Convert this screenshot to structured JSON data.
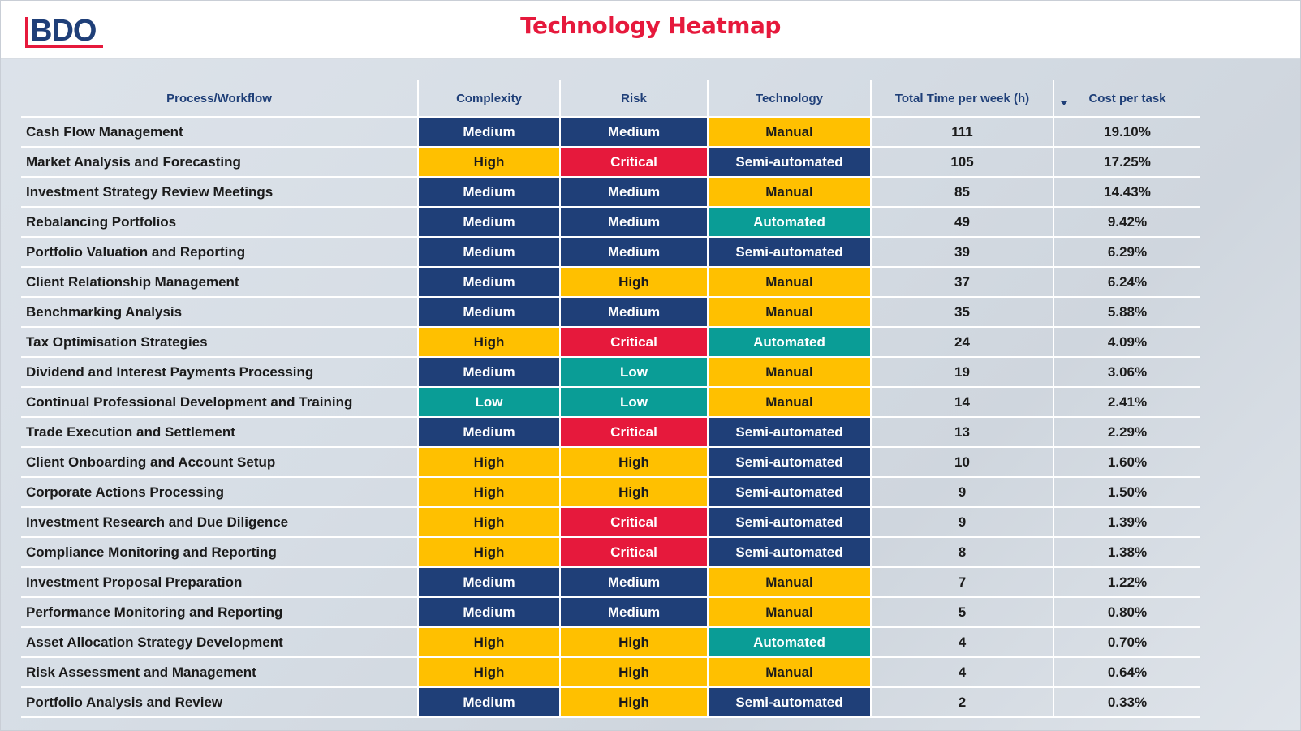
{
  "header": {
    "logo_text": "BDO",
    "title": "Technology Heatmap"
  },
  "colors": {
    "Medium": "#1f3f78",
    "High": "#ffc000",
    "Critical": "#e6193c",
    "Low": "#0a9d96",
    "Manual": "#ffc000",
    "Semi-automated": "#1f3f78",
    "Automated": "#0a9d96",
    "dark_text": "#1b1b1b",
    "light_text": "#ffffff"
  },
  "table": {
    "columns": [
      "Process/Workflow",
      "Complexity",
      "Risk",
      "Technology",
      "Total Time per week (h)",
      "Cost per task"
    ],
    "sort_icon": "sort-descending-icon",
    "rows": [
      {
        "process": "Cash Flow Management",
        "complexity": "Medium",
        "risk": "Medium",
        "technology": "Manual",
        "time": "111",
        "cost": "19.10%"
      },
      {
        "process": "Market Analysis and Forecasting",
        "complexity": "High",
        "risk": "Critical",
        "technology": "Semi-automated",
        "time": "105",
        "cost": "17.25%"
      },
      {
        "process": "Investment Strategy Review Meetings",
        "complexity": "Medium",
        "risk": "Medium",
        "technology": "Manual",
        "time": "85",
        "cost": "14.43%"
      },
      {
        "process": "Rebalancing Portfolios",
        "complexity": "Medium",
        "risk": "Medium",
        "technology": "Automated",
        "time": "49",
        "cost": "9.42%"
      },
      {
        "process": "Portfolio Valuation and Reporting",
        "complexity": "Medium",
        "risk": "Medium",
        "technology": "Semi-automated",
        "time": "39",
        "cost": "6.29%"
      },
      {
        "process": "Client Relationship Management",
        "complexity": "Medium",
        "risk": "High",
        "technology": "Manual",
        "time": "37",
        "cost": "6.24%"
      },
      {
        "process": "Benchmarking Analysis",
        "complexity": "Medium",
        "risk": "Medium",
        "technology": "Manual",
        "time": "35",
        "cost": "5.88%"
      },
      {
        "process": "Tax Optimisation Strategies",
        "complexity": "High",
        "risk": "Critical",
        "technology": "Automated",
        "time": "24",
        "cost": "4.09%"
      },
      {
        "process": "Dividend and Interest Payments Processing",
        "complexity": "Medium",
        "risk": "Low",
        "technology": "Manual",
        "time": "19",
        "cost": "3.06%"
      },
      {
        "process": "Continual Professional Development and Training",
        "complexity": "Low",
        "risk": "Low",
        "technology": "Manual",
        "time": "14",
        "cost": "2.41%"
      },
      {
        "process": "Trade Execution and Settlement",
        "complexity": "Medium",
        "risk": "Critical",
        "technology": "Semi-automated",
        "time": "13",
        "cost": "2.29%"
      },
      {
        "process": "Client Onboarding and Account Setup",
        "complexity": "High",
        "risk": "High",
        "technology": "Semi-automated",
        "time": "10",
        "cost": "1.60%"
      },
      {
        "process": "Corporate Actions Processing",
        "complexity": "High",
        "risk": "High",
        "technology": "Semi-automated",
        "time": "9",
        "cost": "1.50%"
      },
      {
        "process": "Investment Research and Due Diligence",
        "complexity": "High",
        "risk": "Critical",
        "technology": "Semi-automated",
        "time": "9",
        "cost": "1.39%"
      },
      {
        "process": "Compliance Monitoring and Reporting",
        "complexity": "High",
        "risk": "Critical",
        "technology": "Semi-automated",
        "time": "8",
        "cost": "1.38%"
      },
      {
        "process": "Investment Proposal Preparation",
        "complexity": "Medium",
        "risk": "Medium",
        "technology": "Manual",
        "time": "7",
        "cost": "1.22%"
      },
      {
        "process": "Performance Monitoring and Reporting",
        "complexity": "Medium",
        "risk": "Medium",
        "technology": "Manual",
        "time": "5",
        "cost": "0.80%"
      },
      {
        "process": "Asset Allocation Strategy Development",
        "complexity": "High",
        "risk": "High",
        "technology": "Automated",
        "time": "4",
        "cost": "0.70%"
      },
      {
        "process": "Risk Assessment and Management",
        "complexity": "High",
        "risk": "High",
        "technology": "Manual",
        "time": "4",
        "cost": "0.64%"
      },
      {
        "process": "Portfolio Analysis and Review",
        "complexity": "Medium",
        "risk": "High",
        "technology": "Semi-automated",
        "time": "2",
        "cost": "0.33%"
      }
    ]
  }
}
